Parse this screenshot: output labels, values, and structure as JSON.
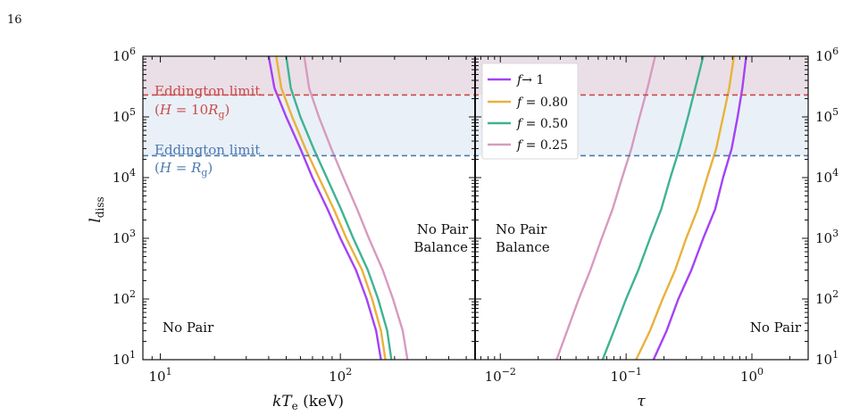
{
  "page_number": "16",
  "colors": {
    "f_1": "#a442f5",
    "f_080": "#e8b23c",
    "f_050": "#3fb393",
    "f_025": "#d79ac0",
    "eddington_10": "#c94a4a",
    "eddington_1": "#4b7ab0",
    "band_top": "#eadfe6",
    "band_mid": "#eaf0f7"
  },
  "chart_data": [
    {
      "type": "line",
      "panel": "left",
      "xscale": "log",
      "yscale": "log",
      "xlabel": "kT_e (keV)",
      "ylabel": "l_diss",
      "xlim": [
        8,
        560
      ],
      "ylim": [
        10,
        1000000
      ],
      "x_tick_labels": [
        "10^1",
        "10^2"
      ],
      "y_tick_labels": [
        "10^1",
        "10^2",
        "10^3",
        "10^4",
        "10^5",
        "10^6"
      ],
      "series": [
        {
          "name": "f → 1",
          "color_key": "f_1",
          "points": [
            [
              40,
              1000000
            ],
            [
              43,
              300000
            ],
            [
              50,
              100000
            ],
            [
              60,
              30000
            ],
            [
              70,
              10000
            ],
            [
              85,
              3000
            ],
            [
              100,
              1000
            ],
            [
              122,
              300
            ],
            [
              140,
              100
            ],
            [
              158,
              30
            ],
            [
              168,
              10
            ]
          ]
        },
        {
          "name": "f = 0.80",
          "color_key": "f_080",
          "points": [
            [
              44,
              1000000
            ],
            [
              47,
              300000
            ],
            [
              54,
              100000
            ],
            [
              64,
              30000
            ],
            [
              76,
              10000
            ],
            [
              92,
              3000
            ],
            [
              108,
              1000
            ],
            [
              132,
              300
            ],
            [
              150,
              100
            ],
            [
              168,
              30
            ],
            [
              178,
              10
            ]
          ]
        },
        {
          "name": "f = 0.50",
          "color_key": "f_050",
          "points": [
            [
              50,
              1000000
            ],
            [
              53,
              300000
            ],
            [
              60,
              100000
            ],
            [
              71,
              30000
            ],
            [
              84,
              10000
            ],
            [
              101,
              3000
            ],
            [
              118,
              1000
            ],
            [
              142,
              300
            ],
            [
              162,
              100
            ],
            [
              182,
              30
            ],
            [
              192,
              10
            ]
          ]
        },
        {
          "name": "f = 0.25",
          "color_key": "f_025",
          "points": [
            [
              63,
              1000000
            ],
            [
              67,
              300000
            ],
            [
              76,
              100000
            ],
            [
              89,
              30000
            ],
            [
              104,
              10000
            ],
            [
              124,
              3000
            ],
            [
              144,
              1000
            ],
            [
              172,
              300
            ],
            [
              196,
              100
            ],
            [
              222,
              30
            ],
            [
              236,
              10
            ]
          ]
        }
      ],
      "annotations": [
        {
          "text": "No Pair",
          "region": "lower-left"
        },
        {
          "text_lines": [
            "No Pair",
            "Balance"
          ],
          "region": "right"
        },
        {
          "text": "Eddington limit",
          "sub": "(H = 10R_g)",
          "level": 230000,
          "color_key": "eddington_10"
        },
        {
          "text": "Eddington limit",
          "sub": "(H = R_g)",
          "level": 23000,
          "color_key": "eddington_1"
        }
      ]
    },
    {
      "type": "line",
      "panel": "right",
      "xscale": "log",
      "yscale": "log",
      "xlabel": "τ",
      "ylabel": "l_diss",
      "xlim": [
        0.0063,
        2.8
      ],
      "ylim": [
        10,
        1000000
      ],
      "x_tick_labels": [
        "10^-2",
        "10^-1",
        "10^0"
      ],
      "y_tick_labels": [
        "10^1",
        "10^2",
        "10^3",
        "10^4",
        "10^5",
        "10^6"
      ],
      "series": [
        {
          "name": "f → 1",
          "color_key": "f_1",
          "points": [
            [
              0.165,
              10
            ],
            [
              0.21,
              30
            ],
            [
              0.26,
              100
            ],
            [
              0.33,
              300
            ],
            [
              0.41,
              1000
            ],
            [
              0.51,
              3000
            ],
            [
              0.59,
              10000
            ],
            [
              0.69,
              30000
            ],
            [
              0.77,
              100000
            ],
            [
              0.84,
              300000
            ],
            [
              0.9,
              1000000
            ]
          ]
        },
        {
          "name": "f = 0.80",
          "color_key": "f_080",
          "points": [
            [
              0.12,
              10
            ],
            [
              0.155,
              30
            ],
            [
              0.195,
              100
            ],
            [
              0.245,
              300
            ],
            [
              0.3,
              1000
            ],
            [
              0.37,
              3000
            ],
            [
              0.44,
              10000
            ],
            [
              0.52,
              30000
            ],
            [
              0.59,
              100000
            ],
            [
              0.66,
              300000
            ],
            [
              0.72,
              1000000
            ]
          ]
        },
        {
          "name": "f = 0.50",
          "color_key": "f_050",
          "points": [
            [
              0.065,
              10
            ],
            [
              0.08,
              30
            ],
            [
              0.1,
              100
            ],
            [
              0.125,
              300
            ],
            [
              0.155,
              1000
            ],
            [
              0.19,
              3000
            ],
            [
              0.225,
              10000
            ],
            [
              0.265,
              30000
            ],
            [
              0.31,
              100000
            ],
            [
              0.355,
              300000
            ],
            [
              0.41,
              1000000
            ]
          ]
        },
        {
          "name": "f = 0.25",
          "color_key": "f_025",
          "points": [
            [
              0.028,
              10
            ],
            [
              0.034,
              30
            ],
            [
              0.042,
              100
            ],
            [
              0.052,
              300
            ],
            [
              0.064,
              1000
            ],
            [
              0.078,
              3000
            ],
            [
              0.093,
              10000
            ],
            [
              0.11,
              30000
            ],
            [
              0.128,
              100000
            ],
            [
              0.148,
              300000
            ],
            [
              0.17,
              1000000
            ]
          ]
        }
      ],
      "annotations": [
        {
          "text_lines": [
            "No Pair",
            "Balance"
          ],
          "region": "left"
        },
        {
          "text": "No Pair",
          "region": "lower-right"
        }
      ]
    }
  ],
  "legend": {
    "placement": "top-left of right panel",
    "entries": [
      {
        "label": "f → 1",
        "color_key": "f_1"
      },
      {
        "label": "f = 0.80",
        "color_key": "f_080"
      },
      {
        "label": "f = 0.50",
        "color_key": "f_050"
      },
      {
        "label": "f = 0.25",
        "color_key": "f_025"
      }
    ]
  }
}
